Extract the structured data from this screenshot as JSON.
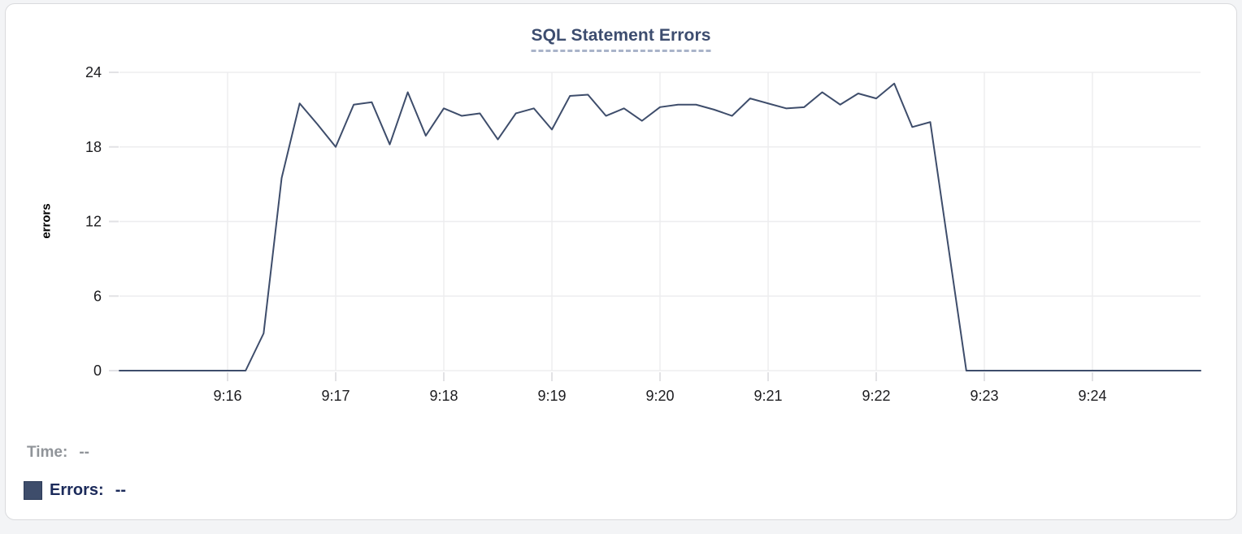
{
  "chart_data": {
    "type": "line",
    "title": "SQL Statement Errors",
    "ylabel": "errors",
    "x_start": "9:15:00",
    "x_end": "9:25:00",
    "x_step_seconds": 10,
    "ylim": [
      0,
      24
    ],
    "yticks": [
      0,
      6,
      12,
      18,
      24
    ],
    "xtick_labels": [
      "9:16",
      "9:17",
      "9:18",
      "9:19",
      "9:20",
      "9:21",
      "9:22",
      "9:23",
      "9:24"
    ],
    "grid": true,
    "legend_position": "bottom-left",
    "series": [
      {
        "name": "Errors",
        "color": "#3e4d6b",
        "values": [
          0,
          0,
          0,
          0,
          0,
          0,
          0,
          0,
          3,
          15.5,
          21.5,
          19.8,
          18,
          21.4,
          21.6,
          18.2,
          22.4,
          18.9,
          21.1,
          20.5,
          20.7,
          18.6,
          20.7,
          21.1,
          19.4,
          22.1,
          22.2,
          20.5,
          21.1,
          20.1,
          21.2,
          21.4,
          21.4,
          21,
          20.5,
          21.9,
          21.5,
          21.1,
          21.2,
          22.4,
          21.4,
          22.3,
          21.9,
          23.1,
          19.6,
          20,
          10,
          0,
          0,
          0,
          0,
          0,
          0,
          0,
          0,
          0,
          0,
          0,
          0,
          0,
          0
        ]
      }
    ]
  },
  "readout": {
    "time_label": "Time:",
    "time_value": "--",
    "errors_label": "Errors:",
    "errors_value": "--"
  },
  "colors": {
    "line": "#3e4d6b",
    "legend_swatch": "#3e4d6b",
    "title_text": "#3d4d6f",
    "title_underline": "#a9b4c9",
    "grid": "#ededef",
    "tick_mark": "#e2e2e5",
    "tick_text": "#1c1c1f",
    "time_readout_text": "#909499",
    "errors_readout_text": "#1b2a5a",
    "card_border": "#d9dadd",
    "card_background": "#ffffff"
  }
}
